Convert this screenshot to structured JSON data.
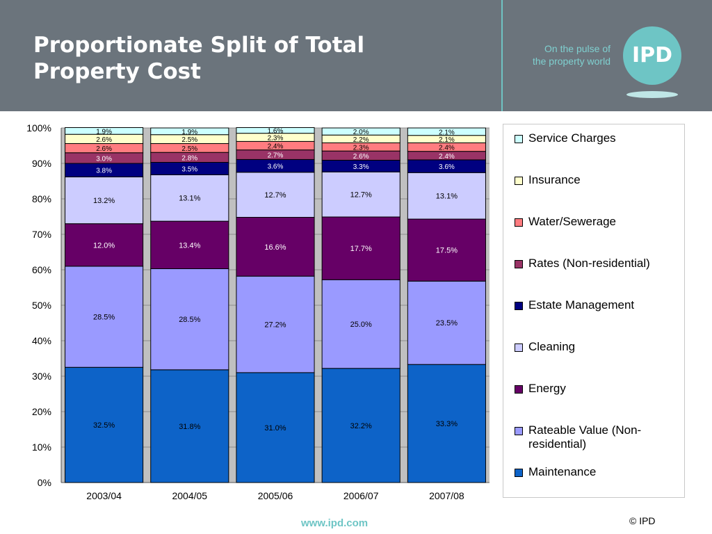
{
  "header": {
    "title_line1": "Proportionate Split of Total",
    "title_line2": "Property Cost",
    "tagline_line1": "On the pulse of",
    "tagline_line2": "the property world",
    "logo_text": "IPD"
  },
  "footer": {
    "url": "www.ipd.com",
    "copyright": "© IPD"
  },
  "colors": {
    "header_bg": "#6b747c",
    "accent": "#6ec5c5",
    "plot_bg": "#c0c0c0"
  },
  "chart_data": {
    "type": "bar",
    "stacked": true,
    "title": "",
    "xlabel": "",
    "ylabel": "",
    "ylim": [
      0,
      100
    ],
    "yticks": [
      "0%",
      "10%",
      "20%",
      "30%",
      "40%",
      "50%",
      "60%",
      "70%",
      "80%",
      "90%",
      "100%"
    ],
    "grid": true,
    "legend_position": "right",
    "categories": [
      "2003/04",
      "2004/05",
      "2005/06",
      "2006/07",
      "2007/08"
    ],
    "series": [
      {
        "name": "Maintenance",
        "color": "#0d63c8",
        "values": [
          32.5,
          31.8,
          31.0,
          32.2,
          33.3
        ],
        "labels": [
          "32.5%",
          "31.8%",
          "31.0%",
          "32.2%",
          "33.3%"
        ]
      },
      {
        "name": "Rateable Value (Non-residential)",
        "color": "#9a9aff",
        "values": [
          28.5,
          28.5,
          27.2,
          25.0,
          23.5
        ],
        "labels": [
          "28.5%",
          "28.5%",
          "27.2%",
          "25.0%",
          "23.5%"
        ]
      },
      {
        "name": "Energy",
        "color": "#660066",
        "values": [
          12.0,
          13.4,
          16.6,
          17.7,
          17.5
        ],
        "labels": [
          "12.0%",
          "13.4%",
          "16.6%",
          "17.7%",
          "17.5%"
        ]
      },
      {
        "name": "Cleaning",
        "color": "#ccccff",
        "values": [
          13.2,
          13.1,
          12.7,
          12.7,
          13.1
        ],
        "labels": [
          "13.2%",
          "13.1%",
          "12.7%",
          "12.7%",
          "13.1%"
        ]
      },
      {
        "name": "Estate Management",
        "color": "#000080",
        "values": [
          3.8,
          3.5,
          3.6,
          3.3,
          3.6
        ],
        "labels": [
          "3.8%",
          "3.5%",
          "3.6%",
          "3.3%",
          "3.6%"
        ]
      },
      {
        "name": "Rates (Non-residential)",
        "color": "#993366",
        "values": [
          3.0,
          2.8,
          2.7,
          2.6,
          2.4
        ],
        "labels": [
          "3.0%",
          "2.8%",
          "2.7%",
          "2.6%",
          "2.4%"
        ]
      },
      {
        "name": "Water/Sewerage",
        "color": "#ff7c80",
        "values": [
          2.6,
          2.5,
          2.4,
          2.3,
          2.4
        ],
        "labels": [
          "2.6%",
          "2.5%",
          "2.4%",
          "2.3%",
          "2.4%"
        ]
      },
      {
        "name": "Insurance",
        "color": "#ffffcc",
        "values": [
          2.6,
          2.5,
          2.3,
          2.2,
          2.1
        ],
        "labels": [
          "2.6%",
          "2.5%",
          "2.3%",
          "2.2%",
          "2.1%"
        ]
      },
      {
        "name": "Service Charges",
        "color": "#ccffff",
        "values": [
          1.9,
          1.9,
          1.6,
          2.0,
          2.1
        ],
        "labels": [
          "1.9%",
          "1.9%",
          "1.6%",
          "2.0%",
          "2.1%"
        ]
      }
    ],
    "legend_order": [
      "Service Charges",
      "Insurance",
      "Water/Sewerage",
      "Rates (Non-residential)",
      "Estate Management",
      "Cleaning",
      "Energy",
      "Rateable Value (Non-residential)",
      "Maintenance"
    ]
  }
}
